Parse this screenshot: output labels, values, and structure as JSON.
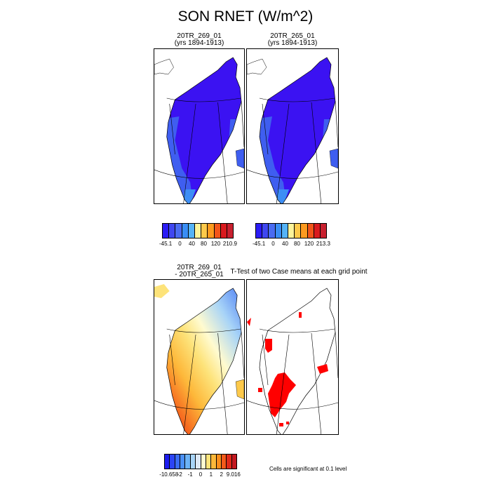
{
  "figure": {
    "title": "SON RNET (W/m^2)"
  },
  "panels": [
    {
      "title_line1": "20TR_269_01",
      "title_line2": "(yrs 1894-1913)"
    },
    {
      "title_line1": "20TR_265_01",
      "title_line2": "(yrs 1894-1913)"
    },
    {
      "title_line1": "20TR_269_01",
      "title_line2": "- 20TR_265_01"
    },
    {
      "title_line1": "T-Test of two Case means at each grid point"
    }
  ],
  "colorbars": [
    {
      "labels": [
        "-45.1",
        "0",
        "40",
        "80",
        "120",
        "210.9"
      ],
      "colors": [
        "#2b1cf5",
        "#3f47f0",
        "#4a6cf2",
        "#3a8ef5",
        "#55b3f7",
        "#fcf39a",
        "#fdc94a",
        "#fd9a1f",
        "#f2551a",
        "#d91a1e",
        "#c8202f"
      ]
    },
    {
      "labels": [
        "-45.1",
        "0",
        "40",
        "80",
        "120",
        "213.3"
      ],
      "colors": [
        "#2b1cf5",
        "#3f47f0",
        "#4a6cf2",
        "#3a8ef5",
        "#55b3f7",
        "#fcf39a",
        "#fdc94a",
        "#fd9a1f",
        "#f2551a",
        "#d91a1e",
        "#c8202f"
      ]
    },
    {
      "labels": [
        "-10.658",
        "-2",
        "-1",
        "0",
        "1",
        "2",
        "9.016"
      ],
      "colors": [
        "#1c1cf0",
        "#2c44f5",
        "#3a6cf5",
        "#4a90f7",
        "#6cb3f7",
        "#a8d4f7",
        "#dde8f5",
        "#fffbd0",
        "#fde37a",
        "#fdb83a",
        "#fb8e1c",
        "#f45a1a",
        "#e02a1a",
        "#c41820"
      ]
    }
  ],
  "chart_data": [
    {
      "type": "heatmap",
      "title": "20TR_269_01 (yrs 1894-1913)",
      "colorbar_labels": [
        "-45.1",
        "0",
        "40",
        "80",
        "120",
        "210.9"
      ],
      "value_range": [
        -45.1,
        210.9
      ],
      "dominant_value_interior": -45.1,
      "coastal_values": [
        0,
        40
      ]
    },
    {
      "type": "heatmap",
      "title": "20TR_265_01 (yrs 1894-1913)",
      "colorbar_labels": [
        "-45.1",
        "0",
        "40",
        "80",
        "120",
        "213.3"
      ],
      "value_range": [
        -45.1,
        213.3
      ],
      "dominant_value_interior": -45.1,
      "coastal_values": [
        0,
        40
      ]
    },
    {
      "type": "heatmap",
      "title": "20TR_269_01 - 20TR_265_01",
      "colorbar_labels": [
        "-10.658",
        "-2",
        "-1",
        "0",
        "1",
        "2",
        "9.016"
      ],
      "value_range": [
        -10.658,
        9.016
      ],
      "north_east_values": [
        -2,
        -1
      ],
      "south_west_values": [
        1,
        2
      ]
    },
    {
      "type": "heatmap",
      "title": "T-Test of two Case means at each grid point",
      "significance_level": 0.1,
      "significant_color": "#ff0000"
    }
  ],
  "footnote": "Cells are significant at 0.1 level",
  "colors": {
    "interior_blue": "#3b12f2",
    "coast_blue": "#3f5ef0",
    "light_blue": "#3d8ef5",
    "significant_red": "#ff0000"
  }
}
